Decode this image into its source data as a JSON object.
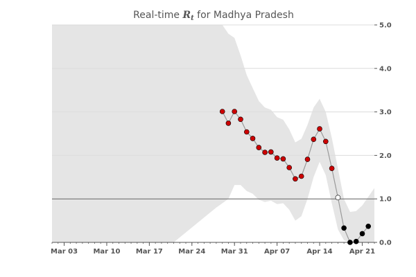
{
  "chart_data": {
    "type": "scatter",
    "title_prefix": "Real-time ",
    "title_symbol": "R",
    "title_subscript": "t",
    "title_suffix": " for Madhya Pradesh",
    "xlabel": "",
    "ylabel": "",
    "x_start": "2020-03-01",
    "xlim": [
      "2020-03-01",
      "2020-04-23"
    ],
    "ylim": [
      0,
      5
    ],
    "x_ticks": [
      {
        "date": "2020-03-03",
        "label": "Mar 03"
      },
      {
        "date": "2020-03-10",
        "label": "Mar 10"
      },
      {
        "date": "2020-03-17",
        "label": "Mar 17"
      },
      {
        "date": "2020-03-24",
        "label": "Mar 24"
      },
      {
        "date": "2020-03-31",
        "label": "Mar 31"
      },
      {
        "date": "2020-04-07",
        "label": "Apr 07"
      },
      {
        "date": "2020-04-14",
        "label": "Apr 14"
      },
      {
        "date": "2020-04-21",
        "label": "Apr 21"
      }
    ],
    "y_ticks": [
      {
        "value": 0,
        "label": "0.0"
      },
      {
        "value": 1,
        "label": "1.0"
      },
      {
        "value": 2,
        "label": "2.0"
      },
      {
        "value": 3,
        "label": "3.0"
      },
      {
        "value": 4,
        "label": "4.0"
      },
      {
        "value": 5,
        "label": "5.0"
      }
    ],
    "grid": "horizontal",
    "reference_line": 1.0,
    "series": [
      {
        "x": [
          "2020-03-29",
          "2020-03-30",
          "2020-03-31",
          "2020-04-01",
          "2020-04-02",
          "2020-04-03",
          "2020-04-04",
          "2020-04-05",
          "2020-04-06",
          "2020-04-07",
          "2020-04-08",
          "2020-04-09",
          "2020-04-10",
          "2020-04-11",
          "2020-04-12",
          "2020-04-13",
          "2020-04-14",
          "2020-04-15",
          "2020-04-16",
          "2020-04-17",
          "2020-04-18",
          "2020-04-19",
          "2020-04-20",
          "2020-04-21",
          "2020-04-22"
        ],
        "values": [
          3.01,
          2.74,
          3.01,
          2.83,
          2.54,
          2.39,
          2.18,
          2.07,
          2.08,
          1.94,
          1.92,
          1.72,
          1.46,
          1.52,
          1.91,
          2.37,
          2.61,
          2.32,
          1.7,
          1.03,
          0.33,
          0.0,
          0.02,
          0.2,
          0.37
        ]
      }
    ],
    "band": {
      "x": [
        "2020-03-01",
        "2020-03-20",
        "2020-03-21",
        "2020-03-28",
        "2020-03-29",
        "2020-03-30",
        "2020-03-31",
        "2020-04-01",
        "2020-04-02",
        "2020-04-03",
        "2020-04-04",
        "2020-04-05",
        "2020-04-06",
        "2020-04-07",
        "2020-04-08",
        "2020-04-09",
        "2020-04-10",
        "2020-04-11",
        "2020-04-12",
        "2020-04-13",
        "2020-04-14",
        "2020-04-15",
        "2020-04-16",
        "2020-04-17",
        "2020-04-18",
        "2020-04-19",
        "2020-04-20",
        "2020-04-21",
        "2020-04-22",
        "2020-04-23"
      ],
      "upper": [
        5.0,
        5.0,
        5.0,
        5.0,
        5.0,
        4.8,
        4.7,
        4.3,
        3.85,
        3.55,
        3.25,
        3.1,
        3.05,
        2.88,
        2.82,
        2.6,
        2.3,
        2.38,
        2.7,
        3.1,
        3.3,
        3.0,
        2.4,
        1.7,
        1.0,
        0.7,
        0.72,
        0.85,
        1.05,
        1.25
      ],
      "lower": [
        0.0,
        0.0,
        0.0,
        0.8,
        0.9,
        1.0,
        1.32,
        1.32,
        1.18,
        1.12,
        0.98,
        0.93,
        0.96,
        0.88,
        0.9,
        0.75,
        0.5,
        0.6,
        1.0,
        1.5,
        1.85,
        1.55,
        0.9,
        0.3,
        0.05,
        0.0,
        0.0,
        0.0,
        0.0,
        0.0
      ]
    },
    "colors": {
      "band": "#e5e5e5",
      "line": "#999999",
      "point_high": "#cc0000",
      "point_mid": "#ffffff",
      "point_low": "#000000",
      "grid": "#dcdcdc",
      "reference": "#666666",
      "axis": "#555555"
    }
  }
}
